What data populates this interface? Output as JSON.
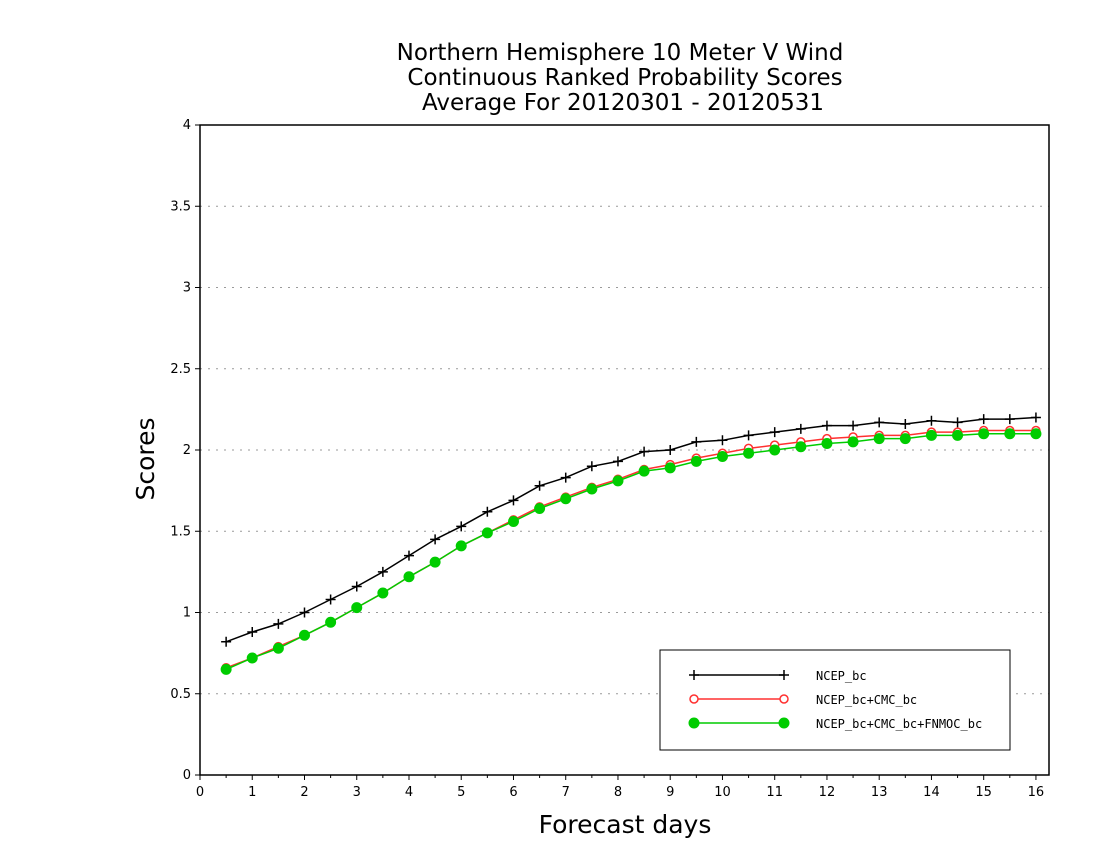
{
  "chart_data": {
    "type": "line",
    "title_lines": [
      "Northern Hemisphere 10 Meter V Wind",
      "Continuous Ranked Probability Scores",
      "Average For 20120301 - 20120531"
    ],
    "xlabel": "Forecast days",
    "ylabel": "Scores",
    "xlim": [
      0,
      16.25
    ],
    "ylim": [
      0,
      4
    ],
    "x_ticks": [
      0,
      1,
      2,
      3,
      4,
      5,
      6,
      7,
      8,
      9,
      10,
      11,
      12,
      13,
      14,
      15,
      16
    ],
    "y_ticks": [
      0,
      0.5,
      1,
      1.5,
      2,
      2.5,
      3,
      3.5,
      4
    ],
    "y_tick_labels": [
      "0",
      "0.5",
      "1",
      "1.5",
      "2",
      "2.5",
      "3",
      "3.5",
      "4"
    ],
    "grid": true,
    "legend_position": "bottom-right",
    "x": [
      0.5,
      1,
      1.5,
      2,
      2.5,
      3,
      3.5,
      4,
      4.5,
      5,
      5.5,
      6,
      6.5,
      7,
      7.5,
      8,
      8.5,
      9,
      9.5,
      10,
      10.5,
      11,
      11.5,
      12,
      12.5,
      13,
      13.5,
      14,
      14.5,
      15,
      15.5,
      16
    ],
    "series": [
      {
        "name": "NCEP_bc",
        "color": "#000000",
        "marker": "plus",
        "values": [
          0.82,
          0.88,
          0.93,
          1.0,
          1.08,
          1.16,
          1.25,
          1.35,
          1.45,
          1.53,
          1.62,
          1.69,
          1.78,
          1.83,
          1.9,
          1.93,
          1.99,
          2.0,
          2.05,
          2.06,
          2.09,
          2.11,
          2.13,
          2.15,
          2.15,
          2.17,
          2.16,
          2.18,
          2.17,
          2.19,
          2.19,
          2.2
        ]
      },
      {
        "name": "NCEP_bc+CMC_bc",
        "color": "#ff3030",
        "marker": "open-circle",
        "values": [
          0.66,
          0.72,
          0.79,
          0.86,
          0.94,
          1.03,
          1.12,
          1.22,
          1.31,
          1.41,
          1.49,
          1.57,
          1.65,
          1.71,
          1.77,
          1.82,
          1.88,
          1.91,
          1.95,
          1.98,
          2.01,
          2.03,
          2.05,
          2.07,
          2.08,
          2.09,
          2.09,
          2.11,
          2.11,
          2.12,
          2.12,
          2.12
        ]
      },
      {
        "name": "NCEP_bc+CMC_bc+FNMOC_bc",
        "color": "#00cc00",
        "marker": "filled-circle",
        "values": [
          0.65,
          0.72,
          0.78,
          0.86,
          0.94,
          1.03,
          1.12,
          1.22,
          1.31,
          1.41,
          1.49,
          1.56,
          1.64,
          1.7,
          1.76,
          1.81,
          1.87,
          1.89,
          1.93,
          1.96,
          1.98,
          2.0,
          2.02,
          2.04,
          2.05,
          2.07,
          2.07,
          2.09,
          2.09,
          2.1,
          2.1,
          2.1
        ]
      }
    ]
  }
}
